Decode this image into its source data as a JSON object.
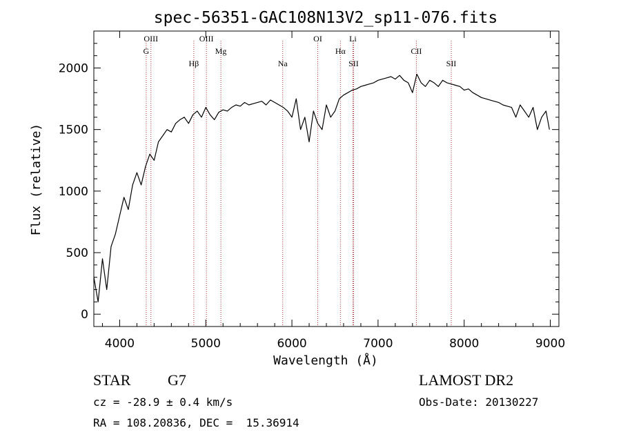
{
  "chart_data": {
    "type": "line",
    "title": "spec-56351-GAC108N13V2_sp11-076.fits",
    "xlabel": "Wavelength (Å)",
    "ylabel": "Flux (relative)",
    "xlim": [
      3700,
      9100
    ],
    "ylim": [
      -100,
      2300
    ],
    "x_ticks": [
      4000,
      5000,
      6000,
      7000,
      8000,
      9000
    ],
    "y_ticks": [
      0,
      500,
      1000,
      1500,
      2000
    ],
    "grid": false,
    "series": [
      {
        "x": [
          3700,
          3750,
          3800,
          3850,
          3900,
          3950,
          4000,
          4050,
          4100,
          4150,
          4200,
          4250,
          4300,
          4350,
          4400,
          4450,
          4500,
          4550,
          4600,
          4650,
          4700,
          4750,
          4800,
          4850,
          4900,
          4950,
          5000,
          5050,
          5100,
          5150,
          5200,
          5250,
          5300,
          5350,
          5400,
          5450,
          5500,
          5550,
          5600,
          5650,
          5700,
          5750,
          5800,
          5850,
          5900,
          5950,
          6000,
          6050,
          6100,
          6150,
          6200,
          6250,
          6300,
          6350,
          6400,
          6450,
          6500,
          6550,
          6600,
          6650,
          6700,
          6750,
          6800,
          6850,
          6900,
          6950,
          7000,
          7050,
          7100,
          7150,
          7200,
          7250,
          7300,
          7350,
          7400,
          7450,
          7500,
          7550,
          7600,
          7650,
          7700,
          7750,
          7800,
          7850,
          7900,
          7950,
          8000,
          8050,
          8100,
          8150,
          8200,
          8250,
          8300,
          8350,
          8400,
          8450,
          8500,
          8550,
          8600,
          8650,
          8700,
          8750,
          8800,
          8850,
          8900,
          8950,
          8990
        ],
        "y": [
          300,
          100,
          450,
          200,
          550,
          650,
          800,
          950,
          850,
          1050,
          1150,
          1050,
          1200,
          1300,
          1250,
          1400,
          1450,
          1500,
          1480,
          1550,
          1580,
          1600,
          1550,
          1620,
          1650,
          1600,
          1680,
          1620,
          1580,
          1640,
          1660,
          1650,
          1680,
          1700,
          1690,
          1720,
          1700,
          1710,
          1720,
          1730,
          1700,
          1740,
          1720,
          1700,
          1680,
          1650,
          1600,
          1750,
          1500,
          1600,
          1400,
          1650,
          1550,
          1500,
          1700,
          1600,
          1650,
          1750,
          1780,
          1800,
          1820,
          1830,
          1850,
          1860,
          1870,
          1880,
          1900,
          1910,
          1920,
          1930,
          1910,
          1940,
          1900,
          1880,
          1800,
          1950,
          1880,
          1850,
          1900,
          1880,
          1850,
          1900,
          1880,
          1870,
          1860,
          1850,
          1820,
          1830,
          1800,
          1780,
          1760,
          1750,
          1740,
          1730,
          1720,
          1700,
          1690,
          1680,
          1600,
          1700,
          1650,
          1600,
          1680,
          1500,
          1600,
          1650,
          1500
        ]
      }
    ],
    "lines": [
      {
        "label": "OIII",
        "x": 4363
      },
      {
        "label": "G",
        "x": 4308
      },
      {
        "label": "Hβ",
        "x": 4861
      },
      {
        "label": "OIII",
        "x": 5007
      },
      {
        "label": "Mg",
        "x": 5175
      },
      {
        "label": "Na",
        "x": 5893
      },
      {
        "label": "OI",
        "x": 6300
      },
      {
        "label": "Hα",
        "x": 6563
      },
      {
        "label": "SII",
        "x": 6716
      },
      {
        "label": "Li",
        "x": 6708
      },
      {
        "label": "CII",
        "x": 7445
      },
      {
        "label": "SII",
        "x": 7850
      }
    ]
  },
  "info": {
    "class_label": "STAR",
    "subclass": "G7",
    "survey": "LAMOST DR2",
    "cz": "cz = -28.9 ± 0.4 km/s",
    "obs_date": "Obs-Date: 20130227",
    "coords": "RA = 108.20836, DEC =  15.36914"
  },
  "colors": {
    "spectrum": "#000000",
    "line_marker": "#b03030",
    "axes": "#000000"
  }
}
